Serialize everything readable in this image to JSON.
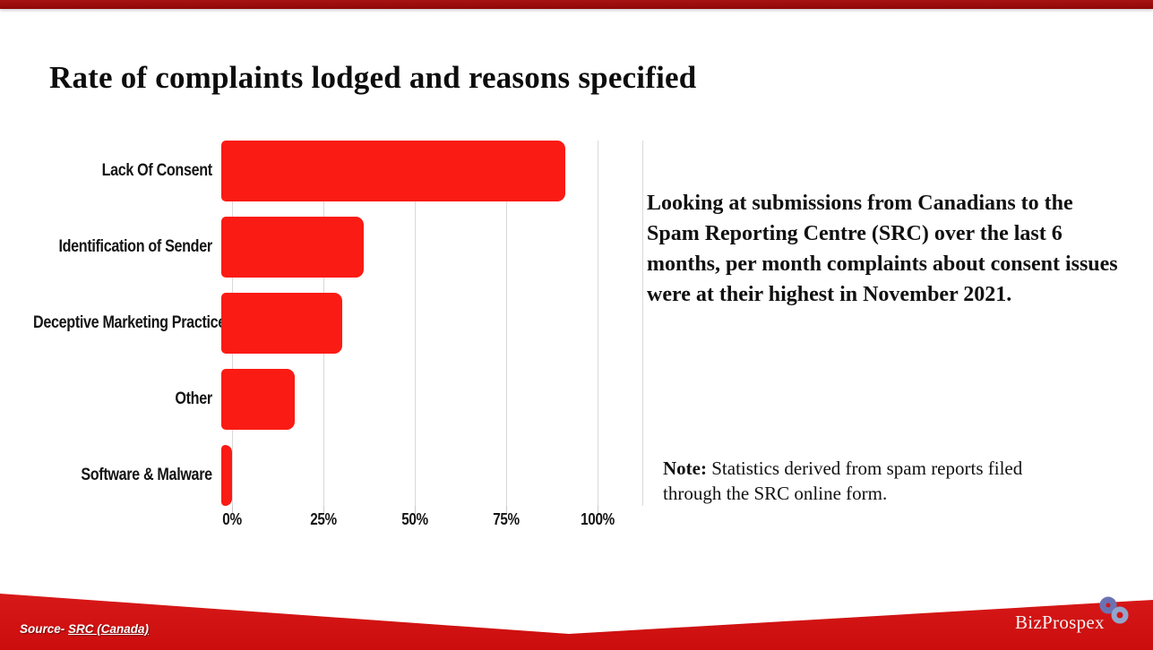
{
  "slide": {
    "title": "Rate of complaints lodged and reasons specified"
  },
  "chart_data": {
    "type": "bar",
    "orientation": "horizontal",
    "title": "",
    "xlabel": "",
    "ylabel": "",
    "categories": [
      "Lack Of Consent",
      "Identification of Sender",
      "Deceptive Marketing Practices",
      "Other",
      "Software & Malware"
    ],
    "values": [
      94,
      39,
      33,
      20,
      3
    ],
    "unit": "percent",
    "xlim": [
      0,
      100
    ],
    "xticks": [
      "0%",
      "25%",
      "50%",
      "75%",
      "100%"
    ],
    "grid": true,
    "legend": false,
    "bar_color": "#fa1b14",
    "gridline_color": "#d9d9d9"
  },
  "commentary": {
    "text": "Looking at submissions from Canadians to the Spam Reporting Centre (SRC) over the last 6 months, per month complaints about consent issues were at their highest in November 2021."
  },
  "note": {
    "label": "Note:",
    "text": " Statistics derived from spam reports filed through the SRC online form."
  },
  "footer": {
    "source_label": "Source- ",
    "source_link": "SRC (Canada)",
    "brand": "BizProspex",
    "band_color": "#d11212"
  },
  "colors": {
    "top_bar": "#9a0c0c",
    "bar_red": "#fa1b14",
    "band_red": "#d11212",
    "logo_ring_dark": "#6b72b3",
    "logo_ring_light": "#93a5cc"
  }
}
